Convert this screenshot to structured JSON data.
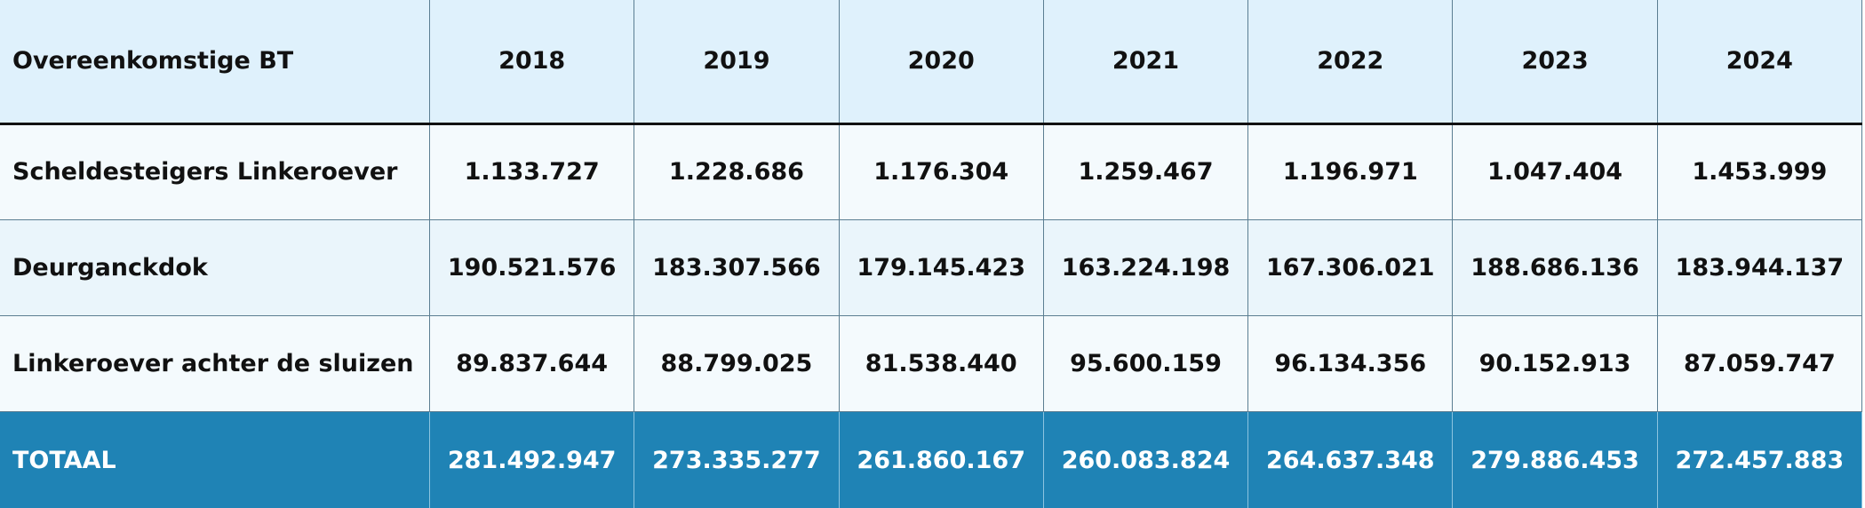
{
  "table": {
    "header": [
      "Overeenkomstige BT",
      "2018",
      "2019",
      "2020",
      "2021",
      "2022",
      "2023",
      "2024"
    ],
    "rows": [
      [
        "Scheldesteigers Linkeroever",
        "1.133.727",
        "1.228.686",
        "1.176.304",
        "1.259.467",
        "1.196.971",
        "1.047.404",
        "1.453.999"
      ],
      [
        "Deurganckdok",
        "190.521.576",
        "183.307.566",
        "179.145.423",
        "163.224.198",
        "167.306.021",
        "188.686.136",
        "183.944.137"
      ],
      [
        "Linkeroever achter de sluizen",
        "89.837.644",
        "88.799.025",
        "81.538.440",
        "95.600.159",
        "96.134.356",
        "90.152.913",
        "87.059.747"
      ]
    ],
    "total": [
      "TOTAAL",
      "281.492.947",
      "273.335.277",
      "261.860.167",
      "260.083.824",
      "264.637.348",
      "279.886.453",
      "272.457.883"
    ]
  }
}
